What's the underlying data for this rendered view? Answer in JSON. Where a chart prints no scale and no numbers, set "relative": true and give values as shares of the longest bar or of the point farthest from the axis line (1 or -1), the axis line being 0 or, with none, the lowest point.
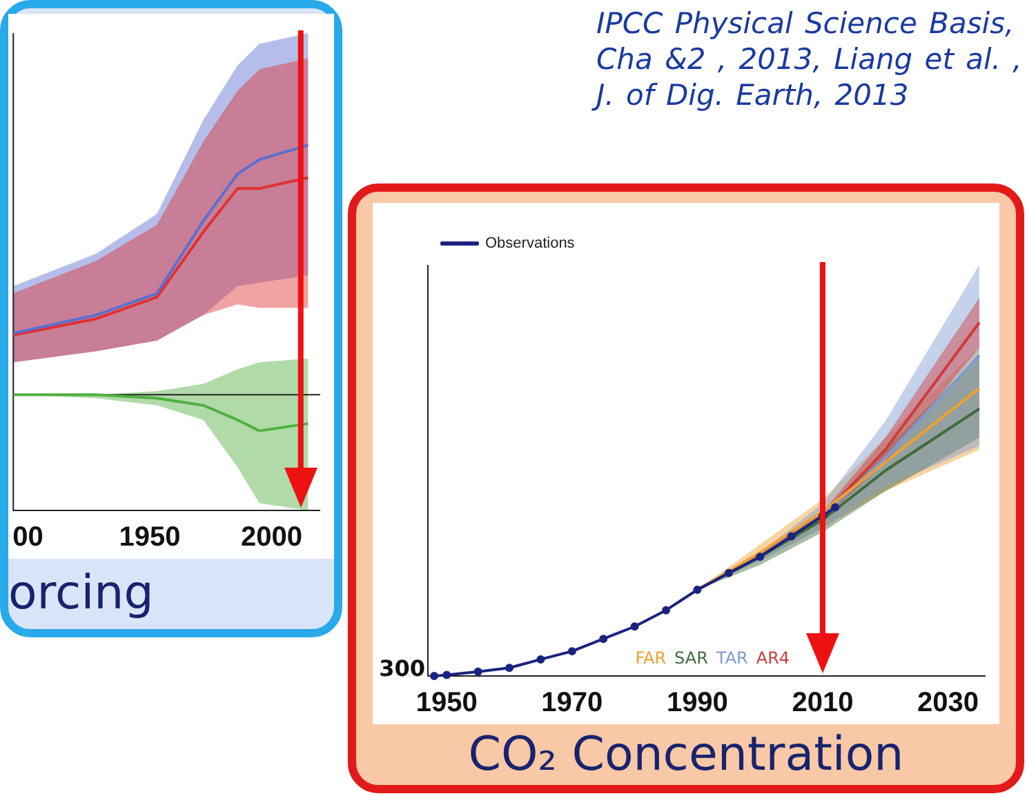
{
  "chart_data": [
    {
      "type": "line",
      "xlabel": "orcing",
      "relative": true,
      "xlim": [
        1894,
        2020
      ],
      "xticks": [
        {
          "value": 1900,
          "label": "00"
        },
        1950,
        2000
      ],
      "grid": false,
      "legend": false,
      "marker": "none",
      "x": [
        1894,
        1928,
        1953,
        1972,
        1986,
        1995,
        2015
      ],
      "series": [
        {
          "color": "#5a6fd0",
          "values": [
            0.246,
            0.319,
            0.406,
            0.696,
            0.884,
            0.942,
            1.0
          ],
          "lower": [
            0.13,
            0.174,
            0.217,
            0.319,
            0.435,
            0.449,
            0.478
          ],
          "upper": [
            0.435,
            0.565,
            0.725,
            1.101,
            1.319,
            1.406,
            1.449
          ]
        },
        {
          "color": "#e03030",
          "values": [
            0.239,
            0.304,
            0.391,
            0.652,
            0.826,
            0.826,
            0.87
          ],
          "lower": [
            0.13,
            0.174,
            0.217,
            0.319,
            0.362,
            0.348,
            0.348
          ],
          "upper": [
            0.406,
            0.536,
            0.681,
            1.014,
            1.217,
            1.304,
            1.348
          ]
        },
        {
          "color": "#50b040",
          "values": [
            0,
            0,
            -0.014,
            -0.043,
            -0.101,
            -0.145,
            -0.116
          ],
          "lower": [
            0,
            -0.014,
            -0.043,
            -0.101,
            -0.29,
            -0.435,
            -0.464
          ],
          "upper": [
            0,
            0,
            0.014,
            0.043,
            0.101,
            0.13,
            0.145
          ]
        }
      ],
      "ref_lines": [
        {
          "axis": "x",
          "value": 2012,
          "color": "#ee1111"
        }
      ]
    },
    {
      "type": "line",
      "xlabel": "CO₂ Concentration",
      "relative": true,
      "xlim": [
        1947,
        2036
      ],
      "xticks": [
        1950,
        1970,
        1990,
        2010,
        2030
      ],
      "grid": false,
      "legend": "top left",
      "marker": "circle",
      "annotations": [
        "IPCC  Physical  Science  Basis,  Cha &2 , 2013, Liang  et al. , J. of Dig. Earth, 2013",
        "300"
      ],
      "series": [
        {
          "name": "Observations",
          "color": "#1a237e",
          "x": [
            1948,
            1950,
            1955,
            1960,
            1965,
            1970,
            1975,
            1980,
            1985,
            1990,
            1995,
            2000,
            2005,
            2010,
            2012
          ],
          "values": [
            0,
            0.003,
            0.012,
            0.023,
            0.047,
            0.07,
            0.105,
            0.14,
            0.186,
            0.244,
            0.291,
            0.337,
            0.395,
            0.453,
            0.477
          ]
        },
        {
          "name": "FAR",
          "color": "#f0a030",
          "marker": "none",
          "x": [
            1990,
            2000,
            2010,
            2020,
            2035
          ],
          "values": [
            0.244,
            0.349,
            0.465,
            0.605,
            0.814
          ],
          "lower": [
            0.244,
            0.326,
            0.419,
            0.523,
            0.64
          ],
          "upper": [
            0.244,
            0.372,
            0.5,
            0.674,
            0.93
          ]
        },
        {
          "name": "SAR",
          "color": "#3f6b3a",
          "marker": "none",
          "x": [
            1990,
            2000,
            2010,
            2020,
            2035
          ],
          "values": [
            0.244,
            0.337,
            0.442,
            0.581,
            0.756
          ],
          "lower": [
            0.244,
            0.314,
            0.407,
            0.523,
            0.674
          ],
          "upper": [
            0.244,
            0.349,
            0.465,
            0.64,
            0.907
          ]
        },
        {
          "name": "TAR",
          "color": "#7d9cd4",
          "marker": "none",
          "x": [
            1990,
            2000,
            2010,
            2020,
            2035
          ],
          "values": [
            0.244,
            0.337,
            0.453,
            0.616,
            0.907
          ],
          "lower": [
            0.244,
            0.326,
            0.419,
            0.535,
            0.651
          ],
          "upper": [
            0.244,
            0.349,
            0.488,
            0.721,
            1.163
          ]
        },
        {
          "name": "AR4",
          "color": "#d03a3a",
          "marker": "none",
          "x": [
            1990,
            2000,
            2010,
            2020,
            2035
          ],
          "values": [
            0.244,
            0.337,
            0.453,
            0.64,
            1.0
          ],
          "lower": [
            0.244,
            0.337,
            0.442,
            0.605,
            0.93
          ],
          "upper": [
            0.244,
            0.349,
            0.465,
            0.674,
            1.07
          ]
        }
      ],
      "ref_lines": [
        {
          "axis": "x",
          "value": 2010,
          "color": "#ee1111"
        }
      ]
    }
  ]
}
